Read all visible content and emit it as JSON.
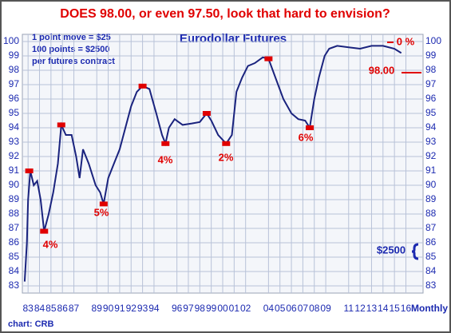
{
  "chart_data": {
    "type": "line",
    "title": "DOES 98.00, or even 97.50, look that hard to envision?",
    "subtitle": "Eurodollar Futures",
    "notes": [
      "1 point move = $25",
      "100 points = $2500",
      "per futures contract"
    ],
    "x_label": "Monthly",
    "source": "chart: CRB",
    "xlim": [
      1982.5,
      2017.5
    ],
    "ylim": [
      82.5,
      100.5
    ],
    "yticks": [
      83,
      84,
      85,
      86,
      87,
      88,
      89,
      90,
      91,
      92,
      93,
      94,
      95,
      96,
      97,
      98,
      99,
      100
    ],
    "xticks": [
      {
        "value": 1983,
        "label": "83"
      },
      {
        "value": 1984,
        "label": "84"
      },
      {
        "value": 1985,
        "label": "85"
      },
      {
        "value": 1986,
        "label": "86"
      },
      {
        "value": 1987,
        "label": "87"
      },
      {
        "value": 1989,
        "label": "89"
      },
      {
        "value": 1990,
        "label": "90"
      },
      {
        "value": 1991,
        "label": "91"
      },
      {
        "value": 1992,
        "label": "92"
      },
      {
        "value": 1993,
        "label": "93"
      },
      {
        "value": 1994,
        "label": "94"
      },
      {
        "value": 1996,
        "label": "96"
      },
      {
        "value": 1997,
        "label": "97"
      },
      {
        "value": 1998,
        "label": "98"
      },
      {
        "value": 1999,
        "label": "99"
      },
      {
        "value": 2000,
        "label": "00"
      },
      {
        "value": 2001,
        "label": "01"
      },
      {
        "value": 2002,
        "label": "02"
      },
      {
        "value": 2004,
        "label": "04"
      },
      {
        "value": 2005,
        "label": "05"
      },
      {
        "value": 2006,
        "label": "06"
      },
      {
        "value": 2007,
        "label": "07"
      },
      {
        "value": 2008,
        "label": "08"
      },
      {
        "value": 2009,
        "label": "09"
      },
      {
        "value": 2011,
        "label": "11"
      },
      {
        "value": 2012,
        "label": "12"
      },
      {
        "value": 2013,
        "label": "13"
      },
      {
        "value": 2014,
        "label": "14"
      },
      {
        "value": 2015,
        "label": "15"
      },
      {
        "value": 2016,
        "label": "16"
      }
    ],
    "grid": true,
    "series": [
      {
        "name": "Eurodollar Futures",
        "color": "#1a237e",
        "x": [
          1982.7,
          1982.9,
          1983.0,
          1983.2,
          1983.5,
          1983.8,
          1984.1,
          1984.4,
          1984.8,
          1985.2,
          1985.6,
          1985.9,
          1986.3,
          1986.8,
          1987.2,
          1987.5,
          1987.8,
          1988.3,
          1988.9,
          1989.3,
          1989.6,
          1990.0,
          1990.5,
          1991.0,
          1991.5,
          1992.0,
          1992.5,
          1993.0,
          1993.6,
          1994.2,
          1994.7,
          1995.0,
          1995.3,
          1995.8,
          1996.5,
          1997.3,
          1998.0,
          1998.6,
          1999.0,
          1999.6,
          2000.3,
          2000.8,
          2001.2,
          2001.7,
          2002.2,
          2002.8,
          2003.5,
          2004.0,
          2004.6,
          2005.3,
          2006.0,
          2006.6,
          2007.2,
          2007.6,
          2008.0,
          2008.4,
          2008.9,
          2009.3,
          2010.0,
          2011.0,
          2012.0,
          2013.0,
          2014.0,
          2015.0,
          2015.6
        ],
        "values": [
          83.3,
          86,
          89,
          91,
          90,
          90.3,
          89,
          86.8,
          88,
          89.5,
          91.5,
          94.2,
          93.5,
          93.5,
          92,
          90.5,
          92.5,
          91.5,
          90,
          89.5,
          88.7,
          90.5,
          91.5,
          92.5,
          94,
          95.5,
          96.5,
          96.9,
          96.7,
          95,
          93.5,
          92.9,
          94,
          94.6,
          94.2,
          94.3,
          94.4,
          95,
          94.5,
          93.5,
          92.9,
          93.5,
          96.5,
          97.5,
          98.3,
          98.5,
          98.9,
          98.8,
          97.5,
          96,
          95,
          94.6,
          94.5,
          94,
          96,
          97.5,
          99,
          99.5,
          99.7,
          99.6,
          99.5,
          99.7,
          99.7,
          99.5,
          99.2
        ]
      }
    ],
    "markers": {
      "x": [
        1983.1,
        1984.4,
        1985.9,
        1989.6,
        1993.0,
        1995.0,
        1998.6,
        2000.3,
        2004.0,
        2007.6
      ],
      "values": [
        91,
        86.8,
        94.2,
        88.7,
        96.9,
        92.9,
        95,
        92.9,
        98.8,
        94
      ]
    },
    "annotations": [
      "4%",
      "5%",
      "4%",
      "2%",
      "6%",
      "0 %",
      "98.00",
      "$2500"
    ]
  }
}
